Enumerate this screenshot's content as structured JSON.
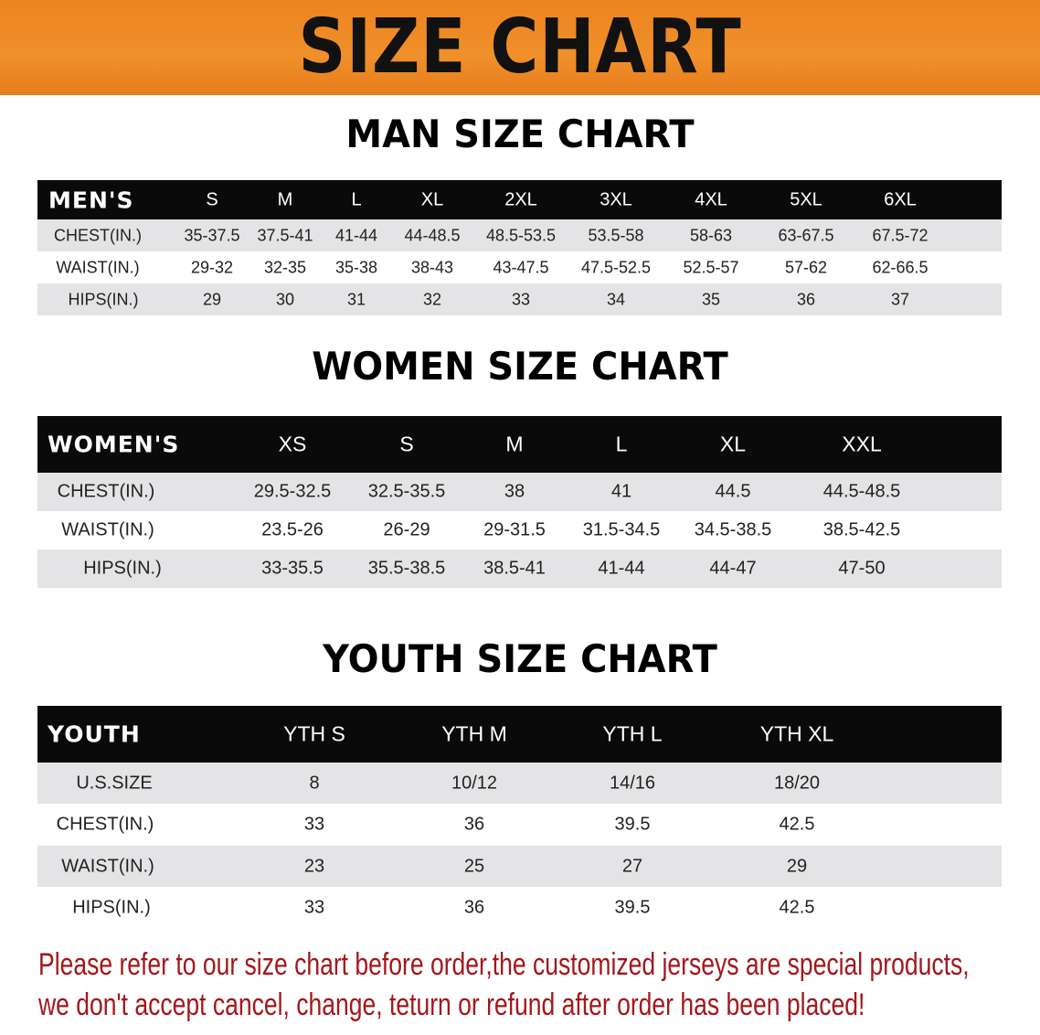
{
  "banner_title": "SIZE CHART",
  "colors": {
    "banner": "#ec8420",
    "header_bg": "#0a0a0a",
    "row_alt": "#e4e4e6",
    "note": "#a3171b"
  },
  "men": {
    "title": "MAN SIZE CHART",
    "corner": "MEN'S",
    "sizes": [
      "S",
      "M",
      "L",
      "XL",
      "2XL",
      "3XL",
      "4XL",
      "5XL",
      "6XL"
    ],
    "rows": [
      {
        "label": "CHEST(IN.)",
        "values": [
          "35-37.5",
          "37.5-41",
          "41-44",
          "44-48.5",
          "48.5-53.5",
          "53.5-58",
          "58-63",
          "63-67.5",
          "67.5-72"
        ]
      },
      {
        "label": "WAIST(IN.)",
        "values": [
          "29-32",
          "32-35",
          "35-38",
          "38-43",
          "43-47.5",
          "47.5-52.5",
          "52.5-57",
          "57-62",
          "62-66.5"
        ]
      },
      {
        "label": "HIPS(IN.)",
        "values": [
          "29",
          "30",
          "31",
          "32",
          "33",
          "34",
          "35",
          "36",
          "37"
        ]
      }
    ]
  },
  "women": {
    "title": "WOMEN SIZE CHART",
    "corner": "WOMEN'S",
    "sizes": [
      "XS",
      "S",
      "M",
      "L",
      "XL",
      "XXL"
    ],
    "rows": [
      {
        "label": "CHEST(IN.)",
        "values": [
          "29.5-32.5",
          "32.5-35.5",
          "38",
          "41",
          "44.5",
          "44.5-48.5"
        ]
      },
      {
        "label": "WAIST(IN.)",
        "values": [
          "23.5-26",
          "26-29",
          "29-31.5",
          "31.5-34.5",
          "34.5-38.5",
          "38.5-42.5"
        ]
      },
      {
        "label": "HIPS(IN.)",
        "values": [
          "33-35.5",
          "35.5-38.5",
          "38.5-41",
          "41-44",
          "44-47",
          "47-50"
        ]
      }
    ]
  },
  "youth": {
    "title": "YOUTH SIZE CHART",
    "corner": "YOUTH",
    "sizes": [
      "YTH S",
      "YTH M",
      "YTH L",
      "YTH XL"
    ],
    "rows": [
      {
        "label": "U.S.SIZE",
        "values": [
          "8",
          "10/12",
          "14/16",
          "18/20"
        ]
      },
      {
        "label": "CHEST(IN.)",
        "values": [
          "33",
          "36",
          "39.5",
          "42.5"
        ]
      },
      {
        "label": "WAIST(IN.)",
        "values": [
          "23",
          "25",
          "27",
          "29"
        ]
      },
      {
        "label": "HIPS(IN.)",
        "values": [
          "33",
          "36",
          "39.5",
          "42.5"
        ]
      }
    ]
  },
  "notice": {
    "line1": "Please refer to our size chart before order,the customized jerseys are special products,",
    "line2": "we don't accept cancel, change, teturn or refund after order has been placed!"
  }
}
